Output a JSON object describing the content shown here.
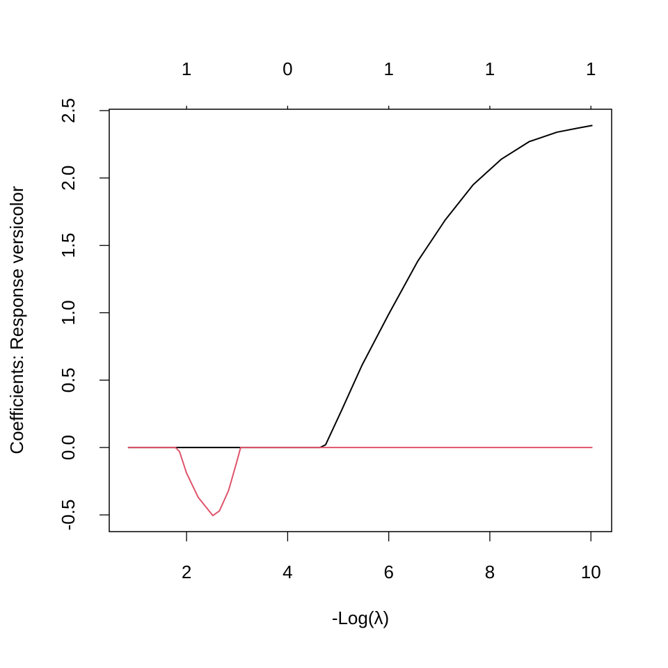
{
  "chart_data": {
    "type": "line",
    "xlabel": "-Log(λ)",
    "ylabel": "Coefficients: Response versicolor",
    "xlim": [
      0.47,
      10.41
    ],
    "ylim": [
      -0.624,
      2.51
    ],
    "xticks": [
      2,
      4,
      6,
      8,
      10
    ],
    "top_ticks": [
      {
        "value": 2,
        "label": "1"
      },
      {
        "value": 4,
        "label": "0"
      },
      {
        "value": 6,
        "label": "1"
      },
      {
        "value": 8,
        "label": "1"
      },
      {
        "value": 10,
        "label": "1"
      }
    ],
    "yticks": [
      -0.5,
      {
        "value": 0,
        "label": "0.0"
      },
      0.5,
      {
        "value": 1,
        "label": "1.0"
      },
      1.5,
      {
        "value": 2,
        "label": "2.0"
      },
      2.5
    ],
    "grid": false,
    "series": [
      {
        "color": "#000000",
        "x": [
          0.84,
          4.64,
          4.75,
          5.06,
          5.47,
          6.0,
          6.57,
          7.12,
          7.67,
          8.23,
          8.78,
          9.33,
          9.74,
          10.03
        ],
        "values": [
          0,
          0,
          0.02,
          0.27,
          0.61,
          0.99,
          1.38,
          1.69,
          1.95,
          2.14,
          2.27,
          2.34,
          2.37,
          2.39
        ]
      },
      {
        "color": "#DF536B",
        "x": [
          0.84,
          1.78,
          1.86,
          2.0,
          2.23,
          2.52,
          2.65,
          2.83,
          2.99,
          3.07,
          10.03
        ],
        "values": [
          0,
          0,
          -0.03,
          -0.19,
          -0.37,
          -0.505,
          -0.47,
          -0.32,
          -0.11,
          0,
          0
        ]
      }
    ]
  }
}
